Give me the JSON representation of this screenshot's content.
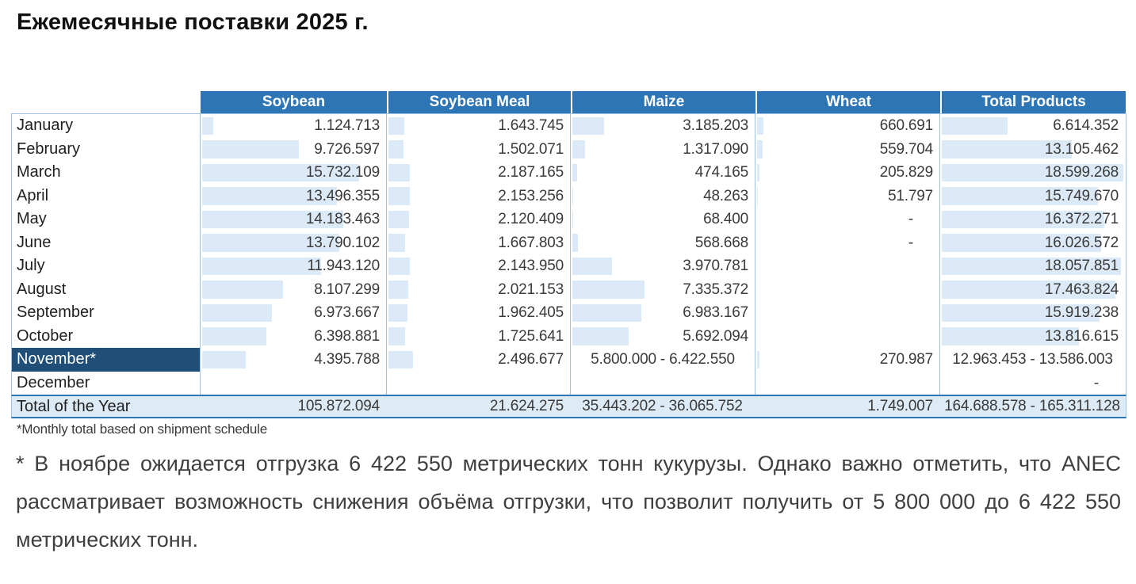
{
  "title": "Ежемесячные поставки 2025 г.",
  "colors": {
    "header_bg": "#2E75B6",
    "header_text": "#FFFFFF",
    "highlight_bg": "#1F4E79",
    "total_bg": "#DDEBF7",
    "bar_fill": "#DCE9F6",
    "grid": "#9DC3E6",
    "strong_border": "#2E75B6"
  },
  "chart_data": {
    "type": "table",
    "title": "Ежемесячные поставки 2025 г.",
    "columns": [
      "Soybean",
      "Soybean Meal",
      "Maize",
      "Wheat",
      "Total Products"
    ],
    "bar_scale_max": 18599268,
    "legend_position": "none",
    "grid": false
  },
  "table": {
    "columns": [
      "Soybean",
      "Soybean Meal",
      "Maize",
      "Wheat",
      "Total Products"
    ],
    "bar_scale_max": 18599268,
    "rows": [
      {
        "month": "January",
        "highlight": false,
        "cells": [
          {
            "text": "1.124.713",
            "bar": 1124713,
            "align": "right"
          },
          {
            "text": "1.643.745",
            "bar": 1643745,
            "align": "right"
          },
          {
            "text": "3.185.203",
            "bar": 3185203,
            "align": "right"
          },
          {
            "text": "660.691",
            "bar": 660691,
            "align": "right"
          },
          {
            "text": "6.614.352",
            "bar": 6614352,
            "align": "right"
          }
        ]
      },
      {
        "month": "February",
        "highlight": false,
        "cells": [
          {
            "text": "9.726.597",
            "bar": 9726597,
            "align": "right"
          },
          {
            "text": "1.502.071",
            "bar": 1502071,
            "align": "right"
          },
          {
            "text": "1.317.090",
            "bar": 1317090,
            "align": "right"
          },
          {
            "text": "559.704",
            "bar": 559704,
            "align": "right"
          },
          {
            "text": "13.105.462",
            "bar": 13105462,
            "align": "right"
          }
        ]
      },
      {
        "month": "March",
        "highlight": false,
        "cells": [
          {
            "text": "15.732.109",
            "bar": 15732109,
            "align": "right"
          },
          {
            "text": "2.187.165",
            "bar": 2187165,
            "align": "right"
          },
          {
            "text": "474.165",
            "bar": 474165,
            "align": "right"
          },
          {
            "text": "205.829",
            "bar": 205829,
            "align": "right"
          },
          {
            "text": "18.599.268",
            "bar": 18599268,
            "align": "right"
          }
        ]
      },
      {
        "month": "April",
        "highlight": false,
        "cells": [
          {
            "text": "13.496.355",
            "bar": 13496355,
            "align": "right"
          },
          {
            "text": "2.153.256",
            "bar": 2153256,
            "align": "right"
          },
          {
            "text": "48.263",
            "bar": 48263,
            "align": "right"
          },
          {
            "text": "51.797",
            "bar": 51797,
            "align": "right"
          },
          {
            "text": "15.749.670",
            "bar": 15749670,
            "align": "right"
          }
        ]
      },
      {
        "month": "May",
        "highlight": false,
        "cells": [
          {
            "text": "14.183.463",
            "bar": 14183463,
            "align": "right"
          },
          {
            "text": "2.120.409",
            "bar": 2120409,
            "align": "right"
          },
          {
            "text": "68.400",
            "bar": 68400,
            "align": "right"
          },
          {
            "text": "-",
            "bar": 0,
            "align": "dash"
          },
          {
            "text": "16.372.271",
            "bar": 16372271,
            "align": "right"
          }
        ]
      },
      {
        "month": "June",
        "highlight": false,
        "cells": [
          {
            "text": "13.790.102",
            "bar": 13790102,
            "align": "right"
          },
          {
            "text": "1.667.803",
            "bar": 1667803,
            "align": "right"
          },
          {
            "text": "568.668",
            "bar": 568668,
            "align": "right"
          },
          {
            "text": "-",
            "bar": 0,
            "align": "dash"
          },
          {
            "text": "16.026.572",
            "bar": 16026572,
            "align": "right"
          }
        ]
      },
      {
        "month": "July",
        "highlight": false,
        "cells": [
          {
            "text": "11.943.120",
            "bar": 11943120,
            "align": "right"
          },
          {
            "text": "2.143.950",
            "bar": 2143950,
            "align": "right"
          },
          {
            "text": "3.970.781",
            "bar": 3970781,
            "align": "right"
          },
          {
            "text": "",
            "bar": 0,
            "align": "right"
          },
          {
            "text": "18.057.851",
            "bar": 18057851,
            "align": "right"
          }
        ]
      },
      {
        "month": "August",
        "highlight": false,
        "cells": [
          {
            "text": "8.107.299",
            "bar": 8107299,
            "align": "right"
          },
          {
            "text": "2.021.153",
            "bar": 2021153,
            "align": "right"
          },
          {
            "text": "7.335.372",
            "bar": 7335372,
            "align": "right"
          },
          {
            "text": "",
            "bar": 0,
            "align": "right"
          },
          {
            "text": "17.463.824",
            "bar": 17463824,
            "align": "right"
          }
        ]
      },
      {
        "month": "September",
        "highlight": false,
        "cells": [
          {
            "text": "6.973.667",
            "bar": 6973667,
            "align": "right"
          },
          {
            "text": "1.962.405",
            "bar": 1962405,
            "align": "right"
          },
          {
            "text": "6.983.167",
            "bar": 6983167,
            "align": "right"
          },
          {
            "text": "",
            "bar": 0,
            "align": "right"
          },
          {
            "text": "15.919.238",
            "bar": 15919238,
            "align": "right"
          }
        ]
      },
      {
        "month": "October",
        "highlight": false,
        "cells": [
          {
            "text": "6.398.881",
            "bar": 6398881,
            "align": "right"
          },
          {
            "text": "1.725.641",
            "bar": 1725641,
            "align": "right"
          },
          {
            "text": "5.692.094",
            "bar": 5692094,
            "align": "right"
          },
          {
            "text": "",
            "bar": 0,
            "align": "right"
          },
          {
            "text": "13.816.615",
            "bar": 13816615,
            "align": "right"
          }
        ]
      },
      {
        "month": "November*",
        "highlight": true,
        "cells": [
          {
            "text": "4.395.788",
            "bar": 4395788,
            "align": "right"
          },
          {
            "text": "2.496.677",
            "bar": 2496677,
            "align": "right"
          },
          {
            "text": "5.800.000 - 6.422.550",
            "bar": 0,
            "align": "center"
          },
          {
            "text": "270.987",
            "bar": 270987,
            "align": "right"
          },
          {
            "text": "12.963.453 - 13.586.003",
            "bar": 0,
            "align": "center"
          }
        ]
      },
      {
        "month": "December",
        "highlight": false,
        "cells": [
          {
            "text": "",
            "bar": 0,
            "align": "right"
          },
          {
            "text": "",
            "bar": 0,
            "align": "right"
          },
          {
            "text": "",
            "bar": 0,
            "align": "right"
          },
          {
            "text": "",
            "bar": 0,
            "align": "right"
          },
          {
            "text": "-",
            "bar": 0,
            "align": "dash"
          }
        ]
      }
    ],
    "total_row": {
      "label": "Total of the Year",
      "cells": [
        {
          "text": "105.872.094",
          "bar": 0,
          "align": "right"
        },
        {
          "text": "21.624.275",
          "bar": 0,
          "align": "right"
        },
        {
          "text": "35.443.202 - 36.065.752",
          "bar": 0,
          "align": "center"
        },
        {
          "text": "1.749.007",
          "bar": 0,
          "align": "right"
        },
        {
          "text": "164.688.578 - 165.311.128",
          "bar": 0,
          "align": "center"
        }
      ]
    },
    "footnote": "*Monthly total based on shipment schedule"
  },
  "note": "* В ноябре ожидается отгрузка 6 422 550 метрических тонн кукурузы. Однако важно отметить, что ANEC рассматривает возможность снижения объёма отгрузки, что позволит получить от 5 800 000 до 6 422 550 метрических тонн."
}
